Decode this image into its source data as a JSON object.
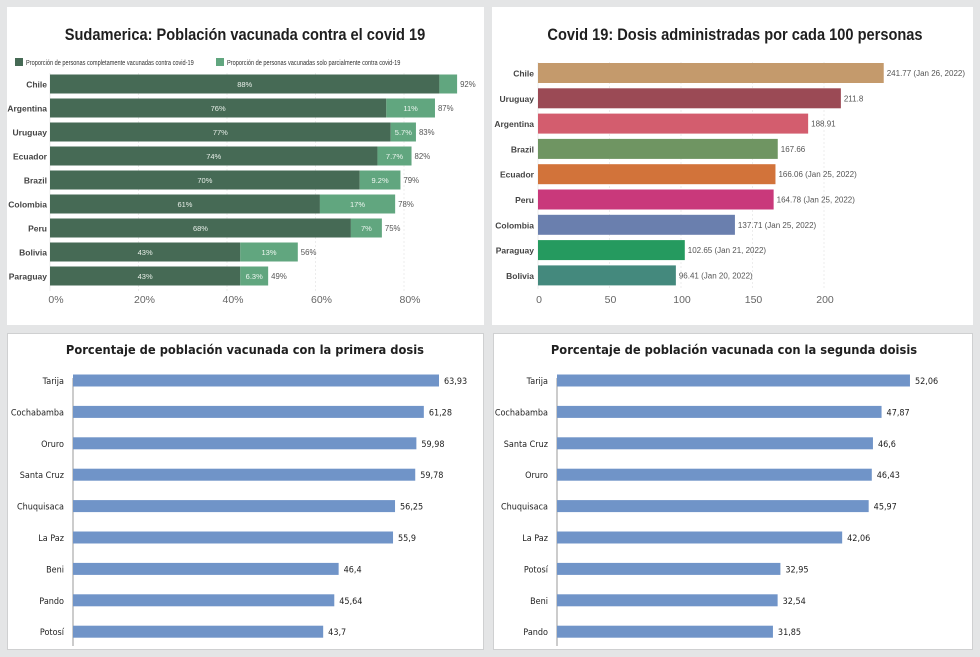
{
  "chart_data": [
    {
      "id": "sudamerica",
      "type": "bar",
      "orientation": "horizontal",
      "stacked": true,
      "title": "Sudamerica: Población vacunada contra el covid 19",
      "legend": [
        {
          "label": "Proporción de personas completamente vacunadas contra covid-19",
          "color": "#466a55"
        },
        {
          "label": "Proporción de personas vacunadas solo parcialmente contra covid-19",
          "color": "#61a67f"
        }
      ],
      "legend_position": "top",
      "categories": [
        "Chile",
        "Argentina",
        "Uruguay",
        "Ecuador",
        "Brazil",
        "Colombia",
        "Peru",
        "Bolivia",
        "Paraguay"
      ],
      "series": [
        {
          "name": "Completamente vacunadas",
          "values": [
            88,
            76,
            77,
            74,
            70,
            61,
            68,
            43,
            43
          ],
          "labels": [
            "88%",
            "76%",
            "77%",
            "74%",
            "70%",
            "61%",
            "68%",
            "43%",
            "43%"
          ]
        },
        {
          "name": "Parcialmente vacunadas",
          "values": [
            4,
            11,
            5.7,
            7.7,
            9.2,
            17,
            7,
            13,
            6.3
          ],
          "labels": [
            "",
            "11%",
            "5.7%",
            "7.7%",
            "9.2%",
            "17%",
            "7%",
            "13%",
            "6.3%"
          ]
        }
      ],
      "totals": [
        "92%",
        "87%",
        "83%",
        "82%",
        "79%",
        "78%",
        "75%",
        "56%",
        "49%"
      ],
      "xlim": [
        0,
        92
      ],
      "xticks": [
        0,
        20,
        40,
        60,
        80
      ],
      "xtick_labels": [
        "0%",
        "20%",
        "40%",
        "60%",
        "80%"
      ],
      "grid": true
    },
    {
      "id": "dosis",
      "type": "bar",
      "orientation": "horizontal",
      "title": "Covid 19: Dosis administradas por cada 100 personas",
      "categories": [
        "Chile",
        "Uruguay",
        "Argentina",
        "Brazil",
        "Ecuador",
        "Peru",
        "Colombia",
        "Paraguay",
        "Bolivia"
      ],
      "values": [
        241.77,
        211.8,
        188.91,
        167.66,
        166.06,
        164.78,
        137.71,
        102.65,
        96.41
      ],
      "labels": [
        "241.77 (Jan 26, 2022)",
        "211.8",
        "188.91",
        "167.66",
        "166.06 (Jan 25, 2022)",
        "164.78 (Jan 25, 2022)",
        "137.71 (Jan 25, 2022)",
        "102.65 (Jan 21, 2022)",
        "96.41 (Jan 20, 2022)"
      ],
      "colors": [
        "#c49a6c",
        "#9b4a55",
        "#d35d6e",
        "#6f9562",
        "#d2733a",
        "#c9397b",
        "#6a7fae",
        "#259a5f",
        "#44897d"
      ],
      "xlim": [
        0,
        245
      ],
      "xticks": [
        0,
        50,
        100,
        150,
        200
      ],
      "xtick_labels": [
        "0",
        "50",
        "100",
        "150",
        "200"
      ],
      "grid": true
    },
    {
      "id": "primera",
      "type": "bar",
      "orientation": "horizontal",
      "title": "Porcentaje de población vacunada con la primera dosis",
      "categories": [
        "Tarija",
        "Cochabamba",
        "Oruro",
        "Santa Cruz",
        "Chuquisaca",
        "La Paz",
        "Beni",
        "Pando",
        "Potosí"
      ],
      "values": [
        63.93,
        61.28,
        59.98,
        59.78,
        56.25,
        55.9,
        46.4,
        45.64,
        43.7
      ],
      "labels": [
        "63,93",
        "61,28",
        "59,98",
        "59,78",
        "56,25",
        "55,9",
        "46,4",
        "45,64",
        "43,7"
      ],
      "color": "#7094c8",
      "xlim": [
        0,
        66
      ],
      "grid": false
    },
    {
      "id": "segunda",
      "type": "bar",
      "orientation": "horizontal",
      "title": "Porcentaje de población vacunada con la segunda doisis",
      "categories": [
        "Tarija",
        "Cochabamba",
        "Santa Cruz",
        "Oruro",
        "Chuquisaca",
        "La Paz",
        "Potosí",
        "Beni",
        "Pando"
      ],
      "values": [
        52.06,
        47.87,
        46.6,
        46.43,
        45.97,
        42.06,
        32.95,
        32.54,
        31.85
      ],
      "labels": [
        "52,06",
        "47,87",
        "46,6",
        "46,43",
        "45,97",
        "42,06",
        "32,95",
        "32,54",
        "31,85"
      ],
      "color": "#7094c8",
      "xlim": [
        0,
        54
      ],
      "grid": false
    }
  ]
}
